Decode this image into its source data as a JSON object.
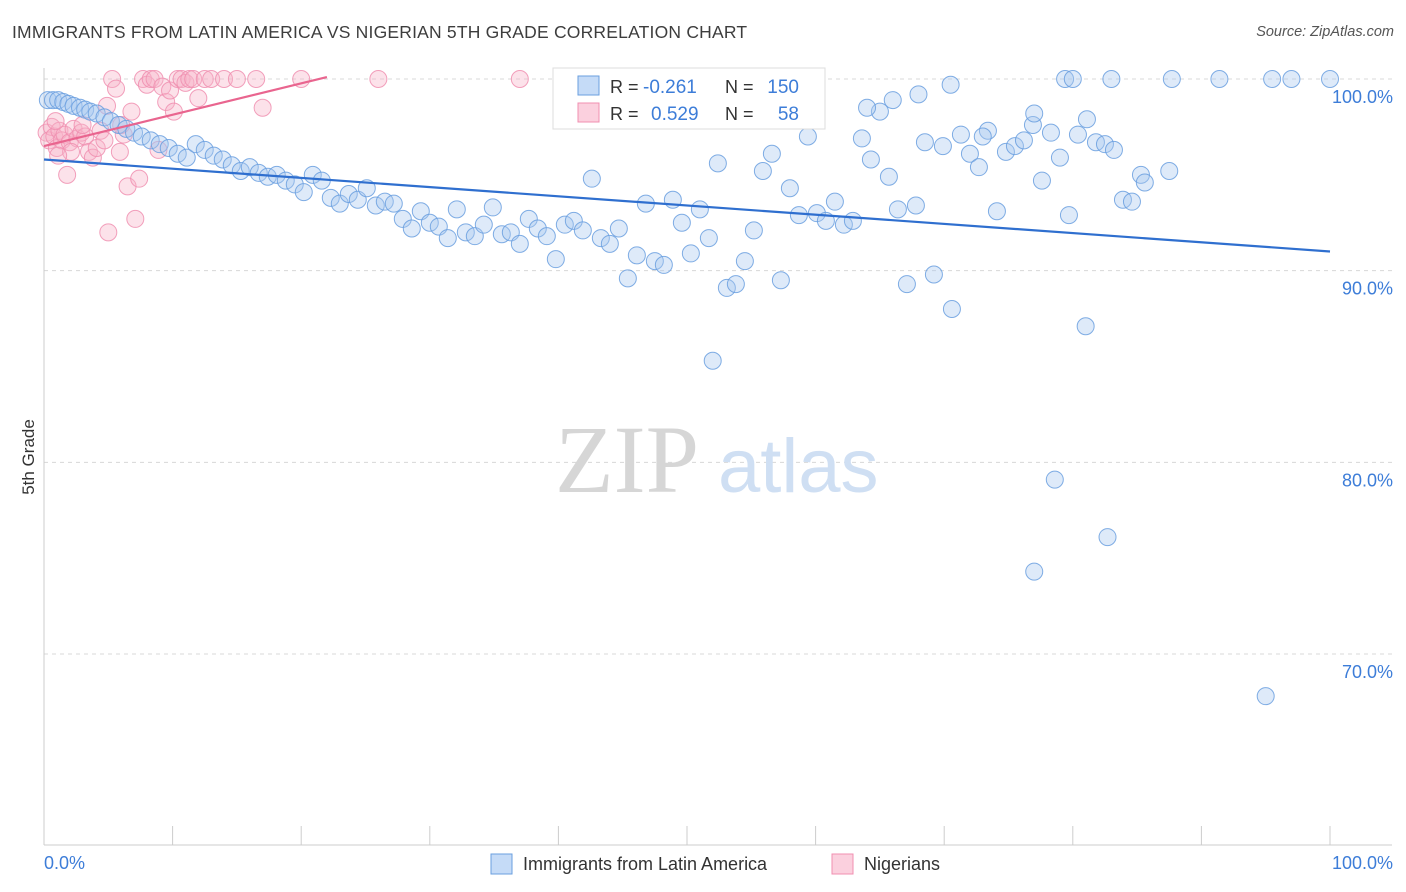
{
  "header": {
    "title": "IMMIGRANTS FROM LATIN AMERICA VS NIGERIAN 5TH GRADE CORRELATION CHART",
    "source": "Source: ZipAtlas.com"
  },
  "watermark": {
    "zip": "ZIP",
    "atlas": "atlas"
  },
  "colors": {
    "blue": "#6a9fdf",
    "blue_line": "#2f6fcf",
    "pink": "#f08fb0",
    "pink_line": "#e9658f",
    "axis_text_blue": "#3d7dd8",
    "grid": "#d8d8d8"
  },
  "stats_box": {
    "blue": {
      "r_label": "R =",
      "r_value": "-0.261",
      "n_label": "N =",
      "n_value": "150"
    },
    "pink": {
      "r_label": "R =",
      "r_value": "0.529",
      "n_label": "N =",
      "n_value": "58"
    }
  },
  "chart_data": {
    "type": "scatter",
    "title": "IMMIGRANTS FROM LATIN AMERICA VS NIGERIAN 5TH GRADE CORRELATION CHART",
    "xlabel": "",
    "ylabel": "5th Grade",
    "xlim": [
      0,
      100
    ],
    "ylim": [
      61,
      100.8
    ],
    "x_tick_labels": [
      "0.0%",
      "100.0%"
    ],
    "y_ticks": [
      {
        "value": 100,
        "label": "100.0%"
      },
      {
        "value": 90,
        "label": "90.0%"
      },
      {
        "value": 80,
        "label": "80.0%"
      },
      {
        "value": 70,
        "label": "70.0%"
      }
    ],
    "legend": [
      "Immigrants from Latin America",
      "Nigerians"
    ],
    "series": [
      {
        "name": "Immigrants from Latin America",
        "color": "#6a9fdf",
        "trend": {
          "x": [
            0,
            100
          ],
          "y": [
            95.8,
            91.0
          ]
        },
        "points": [
          [
            0.3,
            98.9
          ],
          [
            0.7,
            98.9
          ],
          [
            1.1,
            98.9
          ],
          [
            1.5,
            98.8
          ],
          [
            1.9,
            98.7
          ],
          [
            2.3,
            98.6
          ],
          [
            2.8,
            98.5
          ],
          [
            3.2,
            98.4
          ],
          [
            3.6,
            98.3
          ],
          [
            4.1,
            98.2
          ],
          [
            4.7,
            98.0
          ],
          [
            5.2,
            97.8
          ],
          [
            5.8,
            97.6
          ],
          [
            6.4,
            97.4
          ],
          [
            7.0,
            97.2
          ],
          [
            7.6,
            97.0
          ],
          [
            8.3,
            96.8
          ],
          [
            9.0,
            96.6
          ],
          [
            9.7,
            96.4
          ],
          [
            10.4,
            96.1
          ],
          [
            11.1,
            95.9
          ],
          [
            11.8,
            96.6
          ],
          [
            12.5,
            96.3
          ],
          [
            13.2,
            96.0
          ],
          [
            13.9,
            95.8
          ],
          [
            14.6,
            95.5
          ],
          [
            15.3,
            95.2
          ],
          [
            16.0,
            95.4
          ],
          [
            16.7,
            95.1
          ],
          [
            17.4,
            94.9
          ],
          [
            18.1,
            95.0
          ],
          [
            18.8,
            94.7
          ],
          [
            19.5,
            94.5
          ],
          [
            20.2,
            94.1
          ],
          [
            20.9,
            95.0
          ],
          [
            21.6,
            94.7
          ],
          [
            22.3,
            93.8
          ],
          [
            23.0,
            93.5
          ],
          [
            23.7,
            94.0
          ],
          [
            24.4,
            93.7
          ],
          [
            25.1,
            94.3
          ],
          [
            25.8,
            93.4
          ],
          [
            26.5,
            93.6
          ],
          [
            27.2,
            93.5
          ],
          [
            27.9,
            92.7
          ],
          [
            28.6,
            92.2
          ],
          [
            29.3,
            93.1
          ],
          [
            30.0,
            92.5
          ],
          [
            30.7,
            92.3
          ],
          [
            31.4,
            91.7
          ],
          [
            32.1,
            93.2
          ],
          [
            32.8,
            92.0
          ],
          [
            33.5,
            91.8
          ],
          [
            34.2,
            92.4
          ],
          [
            34.9,
            93.3
          ],
          [
            35.6,
            91.9
          ],
          [
            36.3,
            92.0
          ],
          [
            37.0,
            91.4
          ],
          [
            37.7,
            92.7
          ],
          [
            38.4,
            92.2
          ],
          [
            39.1,
            91.8
          ],
          [
            39.8,
            90.6
          ],
          [
            40.5,
            92.4
          ],
          [
            41.2,
            92.6
          ],
          [
            41.9,
            92.1
          ],
          [
            42.6,
            94.8
          ],
          [
            43.3,
            91.7
          ],
          [
            44.0,
            91.4
          ],
          [
            44.7,
            92.2
          ],
          [
            45.4,
            89.6
          ],
          [
            46.1,
            90.8
          ],
          [
            46.8,
            93.5
          ],
          [
            47.5,
            90.5
          ],
          [
            48.2,
            90.3
          ],
          [
            48.9,
            93.7
          ],
          [
            49.6,
            92.5
          ],
          [
            50.3,
            90.9
          ],
          [
            51.0,
            93.2
          ],
          [
            51.7,
            91.7
          ],
          [
            52.4,
            95.6
          ],
          [
            53.1,
            89.1
          ],
          [
            53.8,
            89.3
          ],
          [
            54.5,
            90.5
          ],
          [
            55.2,
            92.1
          ],
          [
            55.9,
            95.2
          ],
          [
            56.6,
            96.1
          ],
          [
            57.3,
            89.5
          ],
          [
            58.0,
            94.3
          ],
          [
            58.7,
            92.9
          ],
          [
            59.4,
            97.0
          ],
          [
            60.1,
            93.0
          ],
          [
            60.8,
            92.6
          ],
          [
            61.5,
            93.6
          ],
          [
            62.2,
            92.4
          ],
          [
            62.9,
            92.6
          ],
          [
            63.6,
            96.9
          ],
          [
            64.3,
            95.8
          ],
          [
            65.0,
            98.3
          ],
          [
            65.7,
            94.9
          ],
          [
            66.4,
            93.2
          ],
          [
            67.1,
            89.3
          ],
          [
            67.8,
            93.4
          ],
          [
            68.5,
            96.7
          ],
          [
            69.2,
            89.8
          ],
          [
            69.9,
            96.5
          ],
          [
            70.6,
            88.0
          ],
          [
            71.3,
            97.1
          ],
          [
            72.0,
            96.1
          ],
          [
            72.7,
            95.4
          ],
          [
            73.4,
            97.3
          ],
          [
            74.1,
            93.1
          ],
          [
            74.8,
            96.2
          ],
          [
            75.5,
            96.5
          ],
          [
            76.2,
            96.8
          ],
          [
            76.9,
            97.6
          ],
          [
            77.6,
            94.7
          ],
          [
            78.3,
            97.2
          ],
          [
            79.0,
            95.9
          ],
          [
            79.7,
            92.9
          ],
          [
            80.4,
            97.1
          ],
          [
            81.1,
            97.9
          ],
          [
            81.8,
            96.7
          ],
          [
            82.5,
            96.6
          ],
          [
            83.2,
            96.3
          ],
          [
            83.9,
            93.7
          ],
          [
            84.6,
            93.6
          ],
          [
            85.3,
            95.0
          ],
          [
            85.6,
            94.6
          ],
          [
            87.5,
            95.2
          ],
          [
            95.0,
            67.8
          ],
          [
            78.6,
            79.1
          ],
          [
            82.7,
            76.1
          ],
          [
            77.0,
            74.3
          ],
          [
            81.0,
            87.1
          ],
          [
            52.0,
            85.3
          ],
          [
            70.5,
            99.7
          ],
          [
            79.4,
            100.0
          ],
          [
            83.0,
            100.0
          ],
          [
            87.7,
            100.0
          ],
          [
            91.4,
            100.0
          ],
          [
            95.5,
            100.0
          ],
          [
            100.0,
            100.0
          ],
          [
            60.0,
            98.7
          ],
          [
            64.0,
            98.5
          ],
          [
            66.0,
            98.9
          ],
          [
            68.0,
            99.2
          ],
          [
            73.0,
            97.0
          ],
          [
            77.0,
            98.2
          ],
          [
            80.0,
            100.0
          ],
          [
            97.0,
            100.0
          ]
        ]
      },
      {
        "name": "Nigerians",
        "color": "#f08fb0",
        "trend": {
          "x": [
            0,
            22
          ],
          "y": [
            96.5,
            100.1
          ]
        },
        "points": [
          [
            0.2,
            97.2
          ],
          [
            0.4,
            96.8
          ],
          [
            0.6,
            97.5
          ],
          [
            0.8,
            97.0
          ],
          [
            1.0,
            96.4
          ],
          [
            1.2,
            97.3
          ],
          [
            1.4,
            96.8
          ],
          [
            1.6,
            97.1
          ],
          [
            1.8,
            95.0
          ],
          [
            2.0,
            96.7
          ],
          [
            2.3,
            97.4
          ],
          [
            2.6,
            96.9
          ],
          [
            2.9,
            97.2
          ],
          [
            3.2,
            97.0
          ],
          [
            3.5,
            96.2
          ],
          [
            3.8,
            95.9
          ],
          [
            4.1,
            96.4
          ],
          [
            4.4,
            97.3
          ],
          [
            4.7,
            96.8
          ],
          [
            5.0,
            92.0
          ],
          [
            5.3,
            100.0
          ],
          [
            5.6,
            99.5
          ],
          [
            5.9,
            96.2
          ],
          [
            6.2,
            97.1
          ],
          [
            6.5,
            94.4
          ],
          [
            6.8,
            98.3
          ],
          [
            7.1,
            92.7
          ],
          [
            7.4,
            94.8
          ],
          [
            7.7,
            100.0
          ],
          [
            8.0,
            99.7
          ],
          [
            8.3,
            100.0
          ],
          [
            8.6,
            100.0
          ],
          [
            8.9,
            96.3
          ],
          [
            9.2,
            99.6
          ],
          [
            9.5,
            98.8
          ],
          [
            9.8,
            99.4
          ],
          [
            10.1,
            98.3
          ],
          [
            10.4,
            100.0
          ],
          [
            10.7,
            100.0
          ],
          [
            11.0,
            99.8
          ],
          [
            11.3,
            100.0
          ],
          [
            11.6,
            100.0
          ],
          [
            12.0,
            99.0
          ],
          [
            12.5,
            100.0
          ],
          [
            13.0,
            100.0
          ],
          [
            14.0,
            100.0
          ],
          [
            15.0,
            100.0
          ],
          [
            16.5,
            100.0
          ],
          [
            17.0,
            98.5
          ],
          [
            20.0,
            100.0
          ],
          [
            26.0,
            100.0
          ],
          [
            37.0,
            100.0
          ],
          [
            4.9,
            98.6
          ],
          [
            3.0,
            97.6
          ],
          [
            2.1,
            96.2
          ],
          [
            6.0,
            97.6
          ],
          [
            1.1,
            96.0
          ],
          [
            0.9,
            97.8
          ]
        ]
      }
    ]
  }
}
